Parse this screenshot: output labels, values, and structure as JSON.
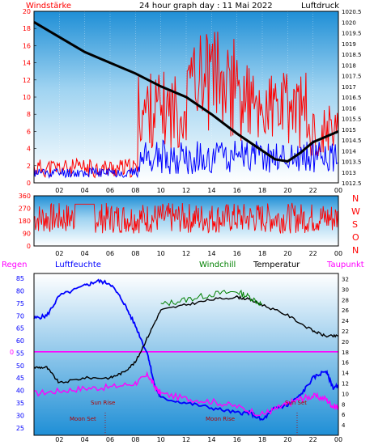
{
  "header": {
    "left_title": "Windstärke",
    "center_title": "24 hour graph day : 11 Mai 2022",
    "right_title": "Luftdruck"
  },
  "colors": {
    "wind_speed": "#ff0000",
    "wind_gust": "#ff0000",
    "wind_avg": "#0000ff",
    "pressure": "#000000",
    "direction": "#ff0000",
    "humidity": "#0000ff",
    "windchill": "#008000",
    "temperature": "#000000",
    "dewpoint": "#ff00ff",
    "rain": "#ff00ff",
    "bg_top": "#ffffff",
    "bg_bottom": "#1f8fd6"
  },
  "wind_panel": {
    "y_ticks_left": [
      "0",
      "2",
      "4",
      "6",
      "8",
      "10",
      "12",
      "14",
      "16",
      "18",
      "20"
    ],
    "y_ticks_right": [
      "1012.5",
      "1013",
      "1013.5",
      "1014",
      "1014.5",
      "1015",
      "1015.5",
      "1016",
      "1016.5",
      "1017",
      "1017.5",
      "1018",
      "1018.5",
      "1019",
      "1019.5",
      "1020",
      "1020.5"
    ],
    "x_ticks": [
      "02",
      "04",
      "06",
      "08",
      "10",
      "12",
      "14",
      "16",
      "18",
      "20",
      "22",
      "00"
    ]
  },
  "direction_panel": {
    "y_ticks": [
      "0",
      "90",
      "180",
      "270",
      "360"
    ],
    "compass": [
      "N",
      "W",
      "S",
      "O",
      "N"
    ],
    "x_ticks": [
      "02",
      "04",
      "06",
      "08",
      "10",
      "12",
      "14",
      "16",
      "18",
      "20",
      "22",
      "00"
    ]
  },
  "temp_panel": {
    "header": {
      "regen": "Regen",
      "luftfeuchte": "Luftfeuchte",
      "windchill": "Windchill",
      "temperatur": "Temperatur",
      "taupunkt": "Taupunkt"
    },
    "left_ticks": [
      "25",
      "30",
      "35",
      "40",
      "45",
      "50",
      "55",
      "60",
      "65",
      "70",
      "75",
      "80",
      "85"
    ],
    "rain_tick": "0",
    "right_ticks": [
      "4",
      "6",
      "8",
      "10",
      "12",
      "14",
      "16",
      "18",
      "20",
      "22",
      "24",
      "26",
      "28",
      "30",
      "32"
    ],
    "x_ticks": [
      "02",
      "04",
      "06",
      "08",
      "10",
      "12",
      "14",
      "16",
      "18",
      "20",
      "22",
      "00"
    ],
    "annotations": {
      "sun_rise": "Sun Rise",
      "sun_set": "Sun Set",
      "moon_set": "Moon Set",
      "moon_rise": "Moon Rise"
    }
  }
}
